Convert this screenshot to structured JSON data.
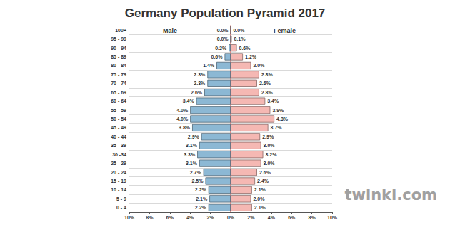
{
  "chart_data": {
    "type": "bar",
    "title": "Germany Population Pyramid 2017",
    "orientation": "horizontal",
    "categories": [
      "0 - 4",
      "5 - 9",
      "10 - 14",
      "15 - 19",
      "20 - 24",
      "25 - 29",
      "30 -34",
      "35 - 39",
      "40 - 44",
      "45 - 49",
      "50 - 54",
      "55 - 59",
      "60 - 64",
      "65 - 69",
      "70 - 74",
      "75 - 79",
      "80 - 84",
      "85 - 89",
      "90 - 94",
      "95 - 99",
      "100+"
    ],
    "series": [
      {
        "name": "Male",
        "color": "#8cb8d4",
        "values": [
          2.2,
          2.1,
          2.2,
          2.5,
          2.7,
          3.1,
          3.3,
          3.1,
          2.9,
          3.8,
          4.0,
          4.0,
          3.4,
          2.6,
          2.3,
          2.3,
          1.4,
          0.6,
          0.2,
          0.0,
          0.0
        ],
        "value_labels": [
          "2.2%",
          "2.1%",
          "2.2%",
          "2.5%",
          "2.7%",
          "3.1%",
          "3.3%",
          "3.1%",
          "2.9%",
          "3.8%",
          "4.0%",
          "4.0%",
          "3.4%",
          "2.6%",
          "2.3%",
          "2.3%",
          "1.4%",
          "0.6%",
          "0.2%",
          "0.0%",
          "0.0%"
        ]
      },
      {
        "name": "Female",
        "color": "#f5b8b3",
        "values": [
          2.1,
          2.0,
          2.1,
          2.4,
          2.6,
          3.0,
          3.2,
          3.0,
          2.9,
          3.7,
          4.3,
          3.9,
          3.4,
          2.8,
          2.6,
          2.8,
          2.0,
          1.2,
          0.6,
          0.1,
          0.0
        ],
        "value_labels": [
          "2.1%",
          "2.0%",
          "2.1%",
          "2.4%",
          "2.6%",
          "3.0%",
          "3.2%",
          "3.0%",
          "2.9%",
          "3.7%",
          "4.3%",
          "3.9%",
          "3.4%",
          "2.8%",
          "2.6%",
          "2.8%",
          "2.0%",
          "1.2%",
          "0.6%",
          "0.1%",
          "0.0%"
        ]
      }
    ],
    "xlim": [
      0,
      10
    ],
    "xticks": [
      {
        "value": 0,
        "label": "0%"
      },
      {
        "value": 2,
        "label": "2%"
      },
      {
        "value": 4,
        "label": "4%"
      },
      {
        "value": 6,
        "label": "6%"
      },
      {
        "value": 8,
        "label": "8%"
      },
      {
        "value": 10,
        "label": "10%"
      }
    ],
    "data_labels": true,
    "grid": true,
    "annotations": [
      "twinkl.com"
    ]
  }
}
